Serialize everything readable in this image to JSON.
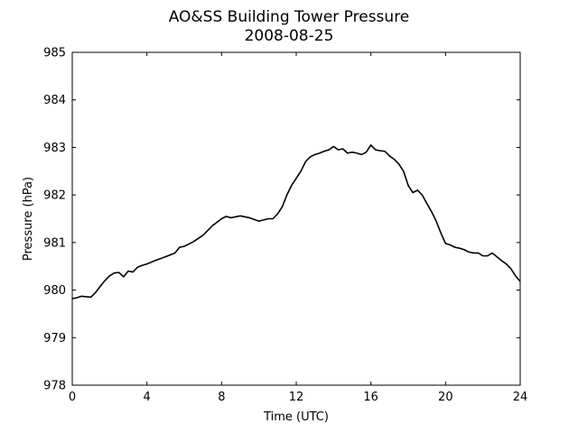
{
  "chart_data": {
    "type": "line",
    "title": "AO&SS Building Tower Pressure",
    "subtitle": "2008-08-25",
    "xlabel": "Time (UTC)",
    "ylabel": "Pressure (hPa)",
    "xlim": [
      0,
      24
    ],
    "ylim": [
      978,
      985
    ],
    "xticks": [
      "0",
      "4",
      "8",
      "12",
      "16",
      "20",
      "24"
    ],
    "yticks": [
      "978",
      "979",
      "980",
      "981",
      "982",
      "983",
      "984",
      "985"
    ],
    "grid": false,
    "series": [
      {
        "color": "#000000",
        "x": [
          0,
          0.25,
          0.5,
          0.75,
          1.0,
          1.25,
          1.5,
          1.75,
          2.0,
          2.25,
          2.5,
          2.75,
          3.0,
          3.25,
          3.5,
          3.75,
          4.0,
          4.5,
          5.0,
          5.5,
          5.75,
          6.0,
          6.5,
          7.0,
          7.5,
          8.0,
          8.25,
          8.5,
          9.0,
          9.5,
          10.0,
          10.5,
          10.75,
          11.0,
          11.25,
          11.5,
          11.75,
          12.0,
          12.25,
          12.5,
          12.75,
          13.0,
          13.25,
          13.5,
          13.75,
          14.0,
          14.25,
          14.5,
          14.75,
          15.0,
          15.25,
          15.5,
          15.75,
          16.0,
          16.25,
          16.5,
          16.75,
          17.0,
          17.25,
          17.5,
          17.75,
          18.0,
          18.25,
          18.5,
          18.75,
          19.0,
          19.25,
          19.5,
          19.75,
          20.0,
          20.25,
          20.5,
          20.75,
          21.0,
          21.25,
          21.5,
          21.75,
          22.0,
          22.25,
          22.5,
          22.75,
          23.0,
          23.25,
          23.5,
          23.75,
          24.0
        ],
        "y": [
          979.82,
          979.84,
          979.87,
          979.86,
          979.85,
          979.95,
          980.08,
          980.2,
          980.3,
          980.36,
          980.37,
          980.28,
          980.4,
          980.38,
          980.48,
          980.52,
          980.55,
          980.63,
          980.7,
          980.78,
          980.9,
          980.92,
          981.02,
          981.15,
          981.35,
          981.5,
          981.55,
          981.52,
          981.56,
          981.52,
          981.45,
          981.5,
          981.5,
          981.6,
          981.75,
          982.0,
          982.2,
          982.35,
          982.5,
          982.7,
          982.8,
          982.85,
          982.88,
          982.92,
          982.95,
          983.02,
          982.95,
          982.97,
          982.88,
          982.9,
          982.88,
          982.85,
          982.9,
          983.05,
          982.95,
          982.93,
          982.92,
          982.82,
          982.75,
          982.65,
          982.5,
          982.2,
          982.05,
          982.1,
          982.0,
          981.82,
          981.65,
          981.45,
          981.2,
          980.98,
          980.95,
          980.9,
          980.88,
          980.85,
          980.8,
          980.78,
          980.78,
          980.72,
          980.72,
          980.78,
          980.7,
          980.62,
          980.55,
          980.45,
          980.3,
          980.18
        ]
      }
    ]
  }
}
